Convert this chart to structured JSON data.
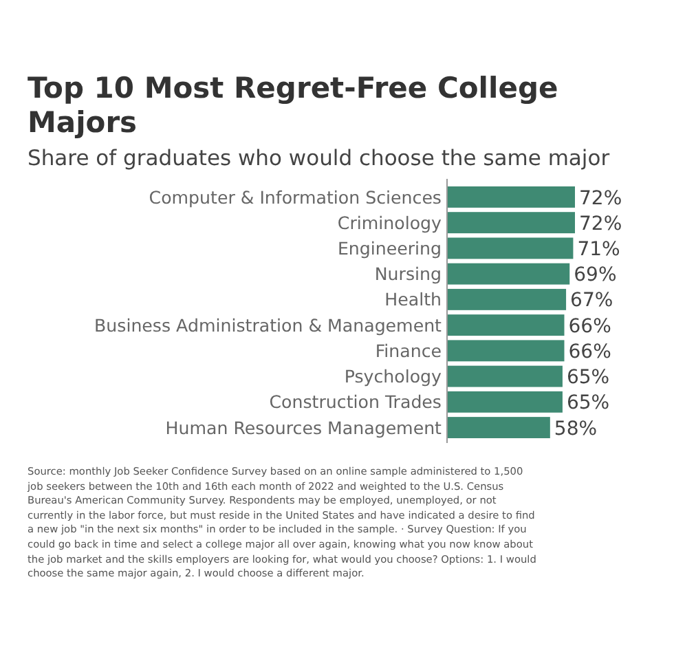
{
  "chart_data": {
    "type": "bar",
    "orientation": "horizontal",
    "title": "Top 10 Most Regret-Free College Majors",
    "subtitle": "Share of graduates who would choose the same major",
    "categories": [
      "Computer & Information Sciences",
      "Criminology",
      "Engineering",
      "Nursing",
      "Health",
      "Business Administration & Management",
      "Finance",
      "Psychology",
      "Construction Trades",
      "Human Resources Management"
    ],
    "values": [
      72,
      72,
      71,
      69,
      67,
      66,
      66,
      65,
      65,
      58
    ],
    "value_labels": [
      "72%",
      "72%",
      "71%",
      "69%",
      "67%",
      "66%",
      "66%",
      "65%",
      "65%",
      "58%"
    ],
    "color": "#3f8a73",
    "relative": false,
    "annotations": [
      "Source: monthly Job Seeker Confidence Survey based on an online sample administered to 1,500 job seekers between the 10th and 16th each month of 2022 and weighted to the U.S. Census Bureau's American Community Survey. Respondents may be employed, unemployed, or not currently in the labor force, but must reside in the United States and have indicated a desire to find a new job \"in the next six months\" in order to be included in the sample. · Survey Question: If you could go back in time and select a college major all over again, knowing what you now know about the job market and the skills employers are looking for, what would you choose? Options: 1. I would choose the same major again, 2. I would choose a different major."
    ]
  }
}
